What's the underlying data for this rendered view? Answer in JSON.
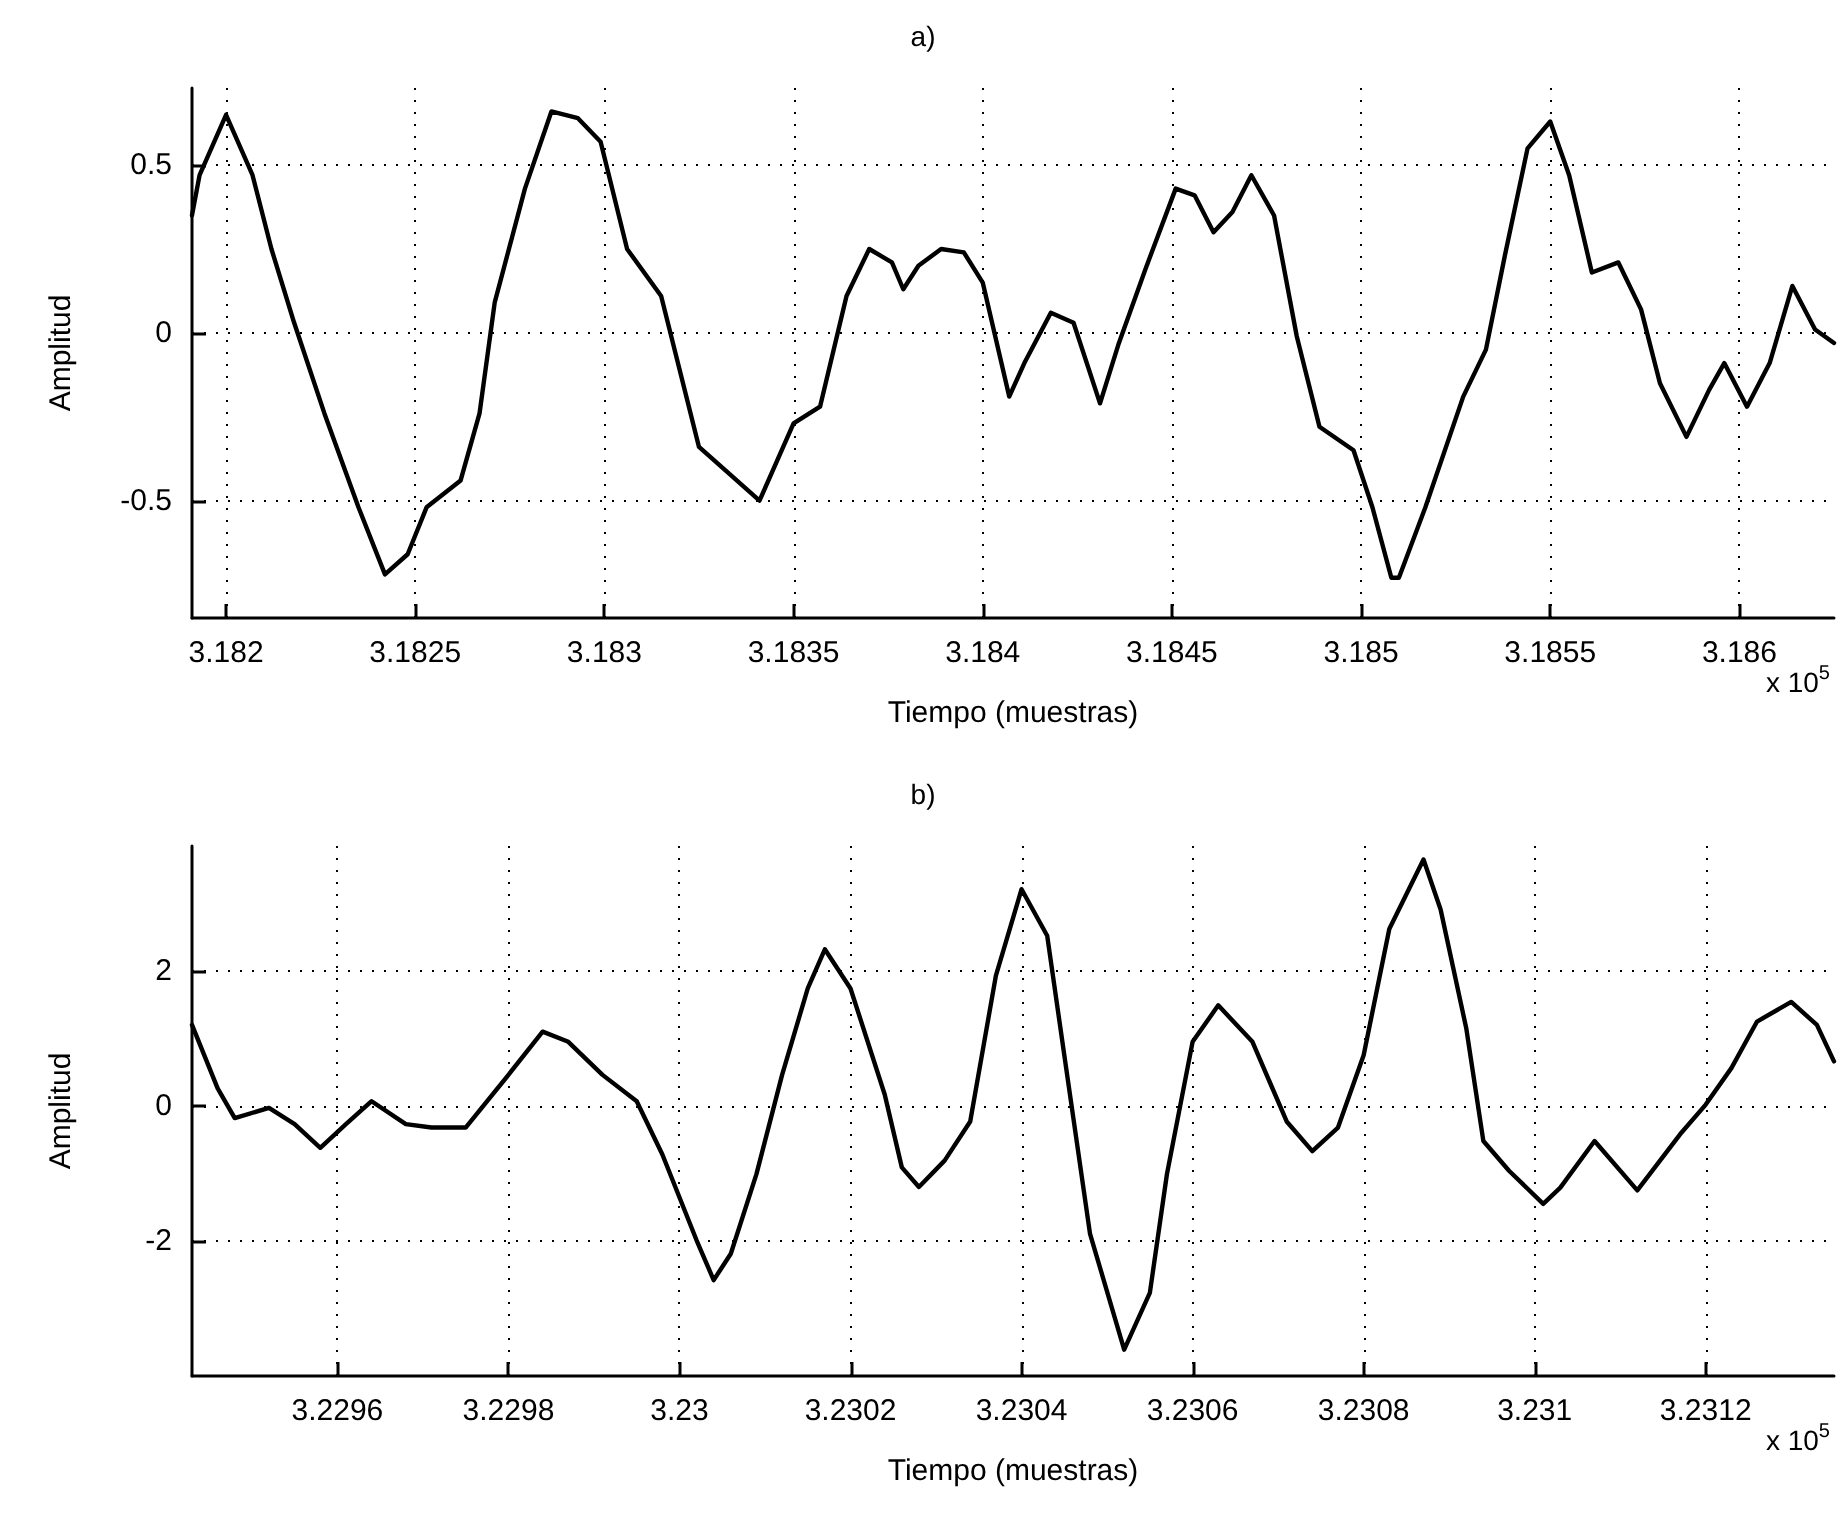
{
  "chart_data": [
    {
      "type": "line",
      "title": "a)",
      "xlabel": "Tiempo (muestras)",
      "ylabel": "Amplitud",
      "annotations": [
        "x 10$^{5}$"
      ],
      "grid": true,
      "marker": "none",
      "line_style": "solid",
      "xlim": [
        3.18191,
        3.18625
      ],
      "ylim": [
        -0.85,
        0.73
      ],
      "xticks": [
        3.182,
        3.1825,
        3.183,
        3.1835,
        3.184,
        3.1845,
        3.185,
        3.1855,
        3.186
      ],
      "yticks": [
        -0.5,
        0,
        0.5
      ],
      "series": [
        {
          "color": "#000000",
          "x": [
            3.18191,
            3.18193,
            3.182,
            3.18207,
            3.18212,
            3.18218,
            3.18226,
            3.18235,
            3.18242,
            3.18248,
            3.18253,
            3.18262,
            3.18267,
            3.18271,
            3.18279,
            3.18286,
            3.18293,
            3.18299,
            3.18306,
            3.18315,
            3.18325,
            3.18332,
            3.18341,
            3.1835,
            3.18357,
            3.18364,
            3.1837,
            3.18376,
            3.18379,
            3.18383,
            3.18389,
            3.18395,
            3.184,
            3.18407,
            3.18411,
            3.18418,
            3.18424,
            3.18431,
            3.18436,
            3.18443,
            3.18451,
            3.18456,
            3.18461,
            3.18466,
            3.18471,
            3.18477,
            3.18483,
            3.18489,
            3.18498,
            3.18503,
            3.18508,
            3.1851,
            3.18517,
            3.18527,
            3.18533,
            3.18538,
            3.18544,
            3.1855,
            3.18555,
            3.18561,
            3.18568,
            3.18574,
            3.18579,
            3.18586,
            3.18592,
            3.18596,
            3.18602,
            3.18608,
            3.18614,
            3.1862,
            3.18625
          ],
          "values": [
            0.35,
            0.47,
            0.65,
            0.47,
            0.25,
            0.03,
            -0.24,
            -0.52,
            -0.72,
            -0.66,
            -0.52,
            -0.44,
            -0.24,
            0.09,
            0.43,
            0.66,
            0.64,
            0.57,
            0.25,
            0.11,
            -0.34,
            -0.41,
            -0.5,
            -0.27,
            -0.22,
            0.11,
            0.25,
            0.21,
            0.13,
            0.2,
            0.25,
            0.24,
            0.15,
            -0.19,
            -0.09,
            0.06,
            0.03,
            -0.21,
            -0.03,
            0.19,
            0.43,
            0.41,
            0.3,
            0.36,
            0.47,
            0.35,
            -0.01,
            -0.28,
            -0.35,
            -0.52,
            -0.73,
            -0.73,
            -0.52,
            -0.19,
            -0.05,
            0.23,
            0.55,
            0.63,
            0.47,
            0.18,
            0.21,
            0.07,
            -0.15,
            -0.31,
            -0.17,
            -0.09,
            -0.22,
            -0.09,
            0.14,
            0.01,
            -0.03
          ]
        }
      ]
    },
    {
      "type": "line",
      "title": "b)",
      "xlabel": "Tiempo (muestras)",
      "ylabel": "Amplitud",
      "annotations": [
        "x 10$^{5}$"
      ],
      "grid": true,
      "marker": "none",
      "line_style": "solid",
      "xlim": [
        3.22943,
        3.23135
      ],
      "ylim": [
        -4,
        3.85
      ],
      "xticks": [
        3.2296,
        3.2298,
        3.23,
        3.2302,
        3.2304,
        3.2306,
        3.2308,
        3.231,
        3.2312
      ],
      "yticks": [
        -2,
        0,
        2
      ],
      "series": [
        {
          "color": "#000000",
          "x": [
            3.22943,
            3.22946,
            3.22948,
            3.22952,
            3.22955,
            3.22958,
            3.22961,
            3.22964,
            3.22968,
            3.22971,
            3.22975,
            3.2298,
            3.22984,
            3.22987,
            3.22991,
            3.22995,
            3.22998,
            3.23002,
            3.23004,
            3.23006,
            3.23009,
            3.23012,
            3.23015,
            3.23017,
            3.2302,
            3.23024,
            3.23026,
            3.23028,
            3.23031,
            3.23034,
            3.23037,
            3.2304,
            3.23043,
            3.23045,
            3.23048,
            3.23052,
            3.23055,
            3.23057,
            3.2306,
            3.23063,
            3.23067,
            3.23071,
            3.23074,
            3.23077,
            3.2308,
            3.23083,
            3.23087,
            3.23089,
            3.23092,
            3.23094,
            3.23097,
            3.23101,
            3.23103,
            3.23107,
            3.23112,
            3.23117,
            3.2312,
            3.23123,
            3.23126,
            3.2313,
            3.23133,
            3.23135
          ],
          "values": [
            1.2,
            0.26,
            -0.18,
            -0.03,
            -0.27,
            -0.62,
            -0.27,
            0.07,
            -0.27,
            -0.32,
            -0.32,
            0.46,
            1.1,
            0.95,
            0.46,
            0.07,
            -0.72,
            -1.99,
            -2.58,
            -2.19,
            -1.01,
            0.46,
            1.74,
            2.32,
            1.74,
            0.17,
            -0.91,
            -1.2,
            -0.81,
            -0.23,
            1.93,
            3.21,
            2.52,
            0.75,
            -1.89,
            -3.61,
            -2.77,
            -1.01,
            0.95,
            1.49,
            0.95,
            -0.23,
            -0.67,
            -0.32,
            0.75,
            2.62,
            3.65,
            2.91,
            1.15,
            -0.52,
            -0.96,
            -1.45,
            -1.21,
            -0.52,
            -1.25,
            -0.42,
            0.02,
            0.56,
            1.25,
            1.54,
            1.2,
            0.66
          ]
        }
      ]
    }
  ]
}
